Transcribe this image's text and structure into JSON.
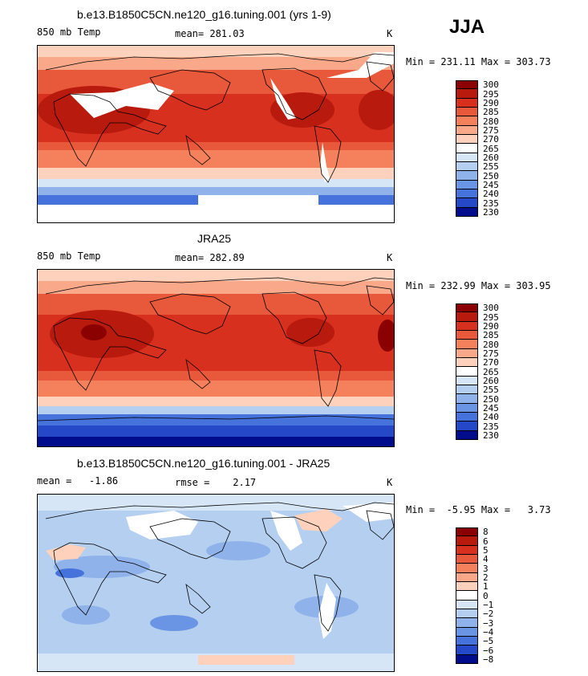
{
  "season": "JJA",
  "panels": [
    {
      "id": "model",
      "title": "b.e13.B1850C5CN.ne120_g16.tuning.001 (yrs 1-9)",
      "left_label": "850 mb Temp",
      "center_label": "mean= 281.03",
      "units": "K",
      "minmax": "Min = 231.11 Max = 303.73",
      "colorbar_labels": [
        "300",
        "295",
        "290",
        "285",
        "280",
        "275",
        "270",
        "265",
        "260",
        "255",
        "250",
        "245",
        "240",
        "235",
        "230"
      ]
    },
    {
      "id": "obs",
      "title": "JRA25",
      "left_label": "850 mb Temp",
      "center_label": "mean= 282.89",
      "units": "K",
      "minmax": "Min = 232.99 Max = 303.95",
      "colorbar_labels": [
        "300",
        "295",
        "290",
        "285",
        "280",
        "275",
        "270",
        "265",
        "260",
        "255",
        "250",
        "245",
        "240",
        "235",
        "230"
      ]
    },
    {
      "id": "diff",
      "title": "b.e13.B1850C5CN.ne120_g16.tuning.001 - JRA25",
      "left_label": "mean =   -1.86",
      "center_label": "rmse =    2.17",
      "units": "K",
      "minmax": "Min =  -5.95 Max =   3.73",
      "colorbar_labels": [
        "8",
        "6",
        "5",
        "4",
        "3",
        "2",
        "1",
        "0",
        "−1",
        "−2",
        "−3",
        "−4",
        "−5",
        "−6",
        "−8"
      ]
    }
  ],
  "colors": {
    "temp_scale": [
      "#8b0000",
      "#b81a0e",
      "#d7301f",
      "#e8583a",
      "#f4805c",
      "#f9a98a",
      "#fdd1bb",
      "#ffffff",
      "#d6e6f7",
      "#b4cff0",
      "#8fb2ea",
      "#6a94e4",
      "#4672dc",
      "#2448c8",
      "#000c8c"
    ],
    "diff_scale": [
      "#8b0000",
      "#b81a0e",
      "#d7301f",
      "#e8583a",
      "#f4805c",
      "#f9a98a",
      "#fdd1bb",
      "#ffffff",
      "#d6e6f7",
      "#b4cff0",
      "#8fb2ea",
      "#6a94e4",
      "#4672dc",
      "#2448c8",
      "#000c8c"
    ],
    "land_outline": "#000000"
  }
}
